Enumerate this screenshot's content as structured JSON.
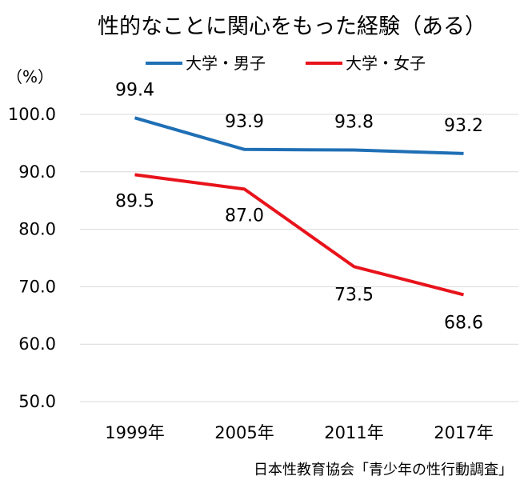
{
  "chart_data": {
    "type": "line",
    "title": "性的なことに関心をもった経験（ある）",
    "ylabel": "（%）",
    "source": "日本性教育協会「青少年の性行動調査」",
    "categories": [
      "1999年",
      "2005年",
      "2011年",
      "2017年"
    ],
    "ylim": [
      50,
      100
    ],
    "yticks": [
      "100.0",
      "90.0",
      "80.0",
      "70.0",
      "60.0",
      "50.0"
    ],
    "grid": true,
    "legend_position": "top",
    "series": [
      {
        "name": "大学・男子",
        "color": "#1f6fb5",
        "values": [
          99.4,
          93.9,
          93.8,
          93.2
        ],
        "labels": [
          "99.4",
          "93.9",
          "93.8",
          "93.2"
        ]
      },
      {
        "name": "大学・女子",
        "color": "#e8131b",
        "values": [
          89.5,
          87.0,
          73.5,
          68.6
        ],
        "labels": [
          "89.5",
          "87.0",
          "73.5",
          "68.6"
        ]
      }
    ]
  }
}
